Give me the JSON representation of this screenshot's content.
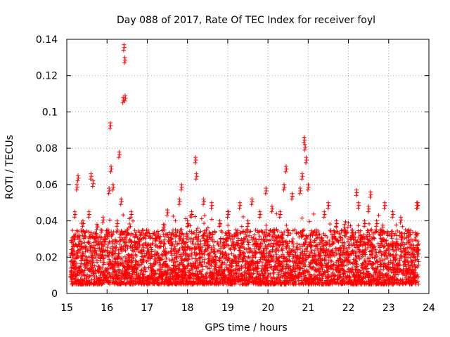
{
  "chart_data": {
    "type": "scatter",
    "title": "Day 088 of 2017, Rate Of TEC Index for receiver foyl",
    "xlabel": "GPS time / hours",
    "ylabel": "ROTI / TECUs",
    "xlim": [
      15,
      24
    ],
    "ylim": [
      0,
      0.14
    ],
    "x_ticks": [
      15,
      16,
      17,
      18,
      19,
      20,
      21,
      22,
      23,
      24
    ],
    "x_tick_labels": [
      "15",
      "16",
      "17",
      "18",
      "19",
      "20",
      "21",
      "22",
      "23",
      "24"
    ],
    "y_ticks": [
      0,
      0.02,
      0.04,
      0.06,
      0.08,
      0.1,
      0.12,
      0.14
    ],
    "y_tick_labels": [
      "0",
      "0.02",
      "0.04",
      "0.06",
      "0.08",
      "0.1",
      "0.12",
      "0.14"
    ],
    "grid": true,
    "marker": "+",
    "series": [
      {
        "name": "ROTI",
        "color": "#ff0000",
        "points": [
          [
            15.1,
            0.012
          ],
          [
            15.15,
            0.025
          ],
          [
            15.2,
            0.045
          ],
          [
            15.25,
            0.06
          ],
          [
            15.28,
            0.065
          ],
          [
            15.3,
            0.03
          ],
          [
            15.35,
            0.018
          ],
          [
            15.4,
            0.04
          ],
          [
            15.5,
            0.02
          ],
          [
            15.55,
            0.045
          ],
          [
            15.6,
            0.066
          ],
          [
            15.65,
            0.062
          ],
          [
            15.7,
            0.025
          ],
          [
            15.75,
            0.038
          ],
          [
            15.8,
            0.015
          ],
          [
            15.9,
            0.042
          ],
          [
            15.95,
            0.03
          ],
          [
            16.0,
            0.012
          ],
          [
            16.05,
            0.058
          ],
          [
            16.08,
            0.094
          ],
          [
            16.1,
            0.07
          ],
          [
            16.15,
            0.06
          ],
          [
            16.2,
            0.025
          ],
          [
            16.25,
            0.04
          ],
          [
            16.3,
            0.078
          ],
          [
            16.35,
            0.052
          ],
          [
            16.4,
            0.108
          ],
          [
            16.42,
            0.137
          ],
          [
            16.44,
            0.13
          ],
          [
            16.45,
            0.109
          ],
          [
            16.5,
            0.035
          ],
          [
            16.55,
            0.02
          ],
          [
            16.6,
            0.045
          ],
          [
            16.7,
            0.016
          ],
          [
            16.8,
            0.03
          ],
          [
            16.9,
            0.02
          ],
          [
            17.0,
            0.025
          ],
          [
            17.1,
            0.012
          ],
          [
            17.2,
            0.032
          ],
          [
            17.3,
            0.02
          ],
          [
            17.4,
            0.038
          ],
          [
            17.5,
            0.046
          ],
          [
            17.6,
            0.025
          ],
          [
            17.7,
            0.035
          ],
          [
            17.8,
            0.052
          ],
          [
            17.85,
            0.06
          ],
          [
            17.9,
            0.015
          ],
          [
            18.0,
            0.04
          ],
          [
            18.1,
            0.045
          ],
          [
            18.2,
            0.075
          ],
          [
            18.22,
            0.066
          ],
          [
            18.3,
            0.025
          ],
          [
            18.4,
            0.052
          ],
          [
            18.5,
            0.03
          ],
          [
            18.6,
            0.05
          ],
          [
            18.7,
            0.02
          ],
          [
            18.8,
            0.04
          ],
          [
            18.9,
            0.028
          ],
          [
            19.0,
            0.045
          ],
          [
            19.1,
            0.018
          ],
          [
            19.2,
            0.035
          ],
          [
            19.3,
            0.05
          ],
          [
            19.4,
            0.022
          ],
          [
            19.5,
            0.04
          ],
          [
            19.6,
            0.052
          ],
          [
            19.7,
            0.03
          ],
          [
            19.8,
            0.045
          ],
          [
            19.9,
            0.025
          ],
          [
            19.95,
            0.058
          ],
          [
            20.0,
            0.02
          ],
          [
            20.1,
            0.048
          ],
          [
            20.2,
            0.03
          ],
          [
            20.3,
            0.045
          ],
          [
            20.4,
            0.06
          ],
          [
            20.45,
            0.07
          ],
          [
            20.5,
            0.035
          ],
          [
            20.6,
            0.055
          ],
          [
            20.7,
            0.02
          ],
          [
            20.8,
            0.058
          ],
          [
            20.85,
            0.066
          ],
          [
            20.9,
            0.086
          ],
          [
            20.92,
            0.082
          ],
          [
            20.95,
            0.075
          ],
          [
            21.0,
            0.06
          ],
          [
            21.05,
            0.03
          ],
          [
            21.1,
            0.02
          ],
          [
            21.2,
            0.035
          ],
          [
            21.3,
            0.025
          ],
          [
            21.4,
            0.045
          ],
          [
            21.5,
            0.05
          ],
          [
            21.6,
            0.03
          ],
          [
            21.7,
            0.04
          ],
          [
            21.8,
            0.025
          ],
          [
            21.9,
            0.038
          ],
          [
            22.0,
            0.02
          ],
          [
            22.1,
            0.035
          ],
          [
            22.2,
            0.057
          ],
          [
            22.25,
            0.05
          ],
          [
            22.3,
            0.03
          ],
          [
            22.4,
            0.04
          ],
          [
            22.5,
            0.048
          ],
          [
            22.55,
            0.056
          ],
          [
            22.6,
            0.025
          ],
          [
            22.7,
            0.04
          ],
          [
            22.8,
            0.035
          ],
          [
            22.9,
            0.05
          ],
          [
            23.0,
            0.025
          ],
          [
            23.1,
            0.045
          ],
          [
            23.2,
            0.03
          ],
          [
            23.3,
            0.042
          ],
          [
            23.4,
            0.02
          ],
          [
            23.5,
            0.035
          ],
          [
            23.6,
            0.025
          ],
          [
            23.7,
            0.05
          ],
          [
            23.72,
            0.05
          ]
        ]
      }
    ],
    "dense_bands": [
      {
        "x_start": 15.1,
        "x_end": 23.75,
        "y_min": 0.005,
        "y_max": 0.035
      }
    ]
  }
}
